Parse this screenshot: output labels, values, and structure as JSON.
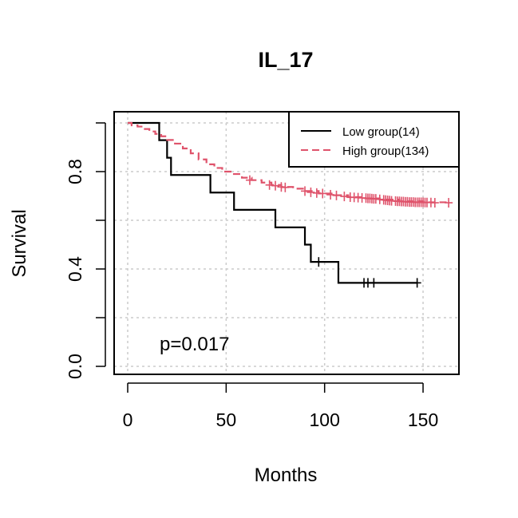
{
  "chart_data": {
    "type": "line",
    "title": "IL_17",
    "xlabel": "Months",
    "ylabel": "Survival",
    "xlim": [
      0,
      160
    ],
    "ylim": [
      0,
      1
    ],
    "xticks": [
      0,
      50,
      100,
      150
    ],
    "xtick_labels": [
      "0",
      "50",
      "100",
      "150"
    ],
    "yticks": [
      0,
      0.2,
      0.4,
      0.6,
      0.8,
      1.0
    ],
    "ytick_labels": [
      "0.0",
      "",
      "0.4",
      "",
      "0.8",
      ""
    ],
    "grid": true,
    "legend_position": "top-right",
    "annotation": "p=0.017",
    "series": [
      {
        "name": "Low group(14)",
        "color": "#000000",
        "dash": "solid",
        "steps": [
          [
            0,
            1.0
          ],
          [
            16,
            0.929
          ],
          [
            20,
            0.857
          ],
          [
            22,
            0.786
          ],
          [
            42,
            0.714
          ],
          [
            54,
            0.643
          ],
          [
            75,
            0.571
          ],
          [
            90,
            0.5
          ],
          [
            93,
            0.429
          ],
          [
            107,
            0.343
          ],
          [
            147,
            0.343
          ]
        ],
        "censored": [
          [
            97,
            0.429
          ],
          [
            120,
            0.343
          ],
          [
            122,
            0.343
          ],
          [
            125,
            0.343
          ],
          [
            147,
            0.343
          ]
        ]
      },
      {
        "name": "High group(134)",
        "color": "#df536b",
        "dash": "dashed",
        "steps": [
          [
            0,
            1.0
          ],
          [
            2,
            0.99
          ],
          [
            5,
            0.985
          ],
          [
            8,
            0.975
          ],
          [
            11,
            0.965
          ],
          [
            14,
            0.955
          ],
          [
            17,
            0.945
          ],
          [
            20,
            0.93
          ],
          [
            24,
            0.915
          ],
          [
            28,
            0.895
          ],
          [
            32,
            0.875
          ],
          [
            36,
            0.85
          ],
          [
            40,
            0.83
          ],
          [
            44,
            0.815
          ],
          [
            48,
            0.8
          ],
          [
            53,
            0.79
          ],
          [
            58,
            0.775
          ],
          [
            63,
            0.765
          ],
          [
            68,
            0.755
          ],
          [
            73,
            0.745
          ],
          [
            78,
            0.737
          ],
          [
            84,
            0.73
          ],
          [
            90,
            0.72
          ],
          [
            97,
            0.71
          ],
          [
            104,
            0.703
          ],
          [
            112,
            0.695
          ],
          [
            120,
            0.69
          ],
          [
            128,
            0.685
          ],
          [
            138,
            0.678
          ],
          [
            150,
            0.674
          ],
          [
            163,
            0.672
          ]
        ],
        "censored": [
          [
            62,
            0.765
          ],
          [
            72,
            0.745
          ],
          [
            75,
            0.742
          ],
          [
            78,
            0.737
          ],
          [
            80,
            0.735
          ],
          [
            90,
            0.72
          ],
          [
            93,
            0.715
          ],
          [
            96,
            0.712
          ],
          [
            99,
            0.71
          ],
          [
            103,
            0.705
          ],
          [
            106,
            0.702
          ],
          [
            110,
            0.698
          ],
          [
            113,
            0.695
          ],
          [
            115,
            0.694
          ],
          [
            117,
            0.693
          ],
          [
            119,
            0.692
          ],
          [
            121,
            0.691
          ],
          [
            122,
            0.69
          ],
          [
            123,
            0.69
          ],
          [
            124,
            0.689
          ],
          [
            125,
            0.688
          ],
          [
            126,
            0.688
          ],
          [
            128,
            0.686
          ],
          [
            130,
            0.684
          ],
          [
            131,
            0.683
          ],
          [
            132,
            0.682
          ],
          [
            133,
            0.681
          ],
          [
            134,
            0.68
          ],
          [
            136,
            0.679
          ],
          [
            137,
            0.678
          ],
          [
            138,
            0.678
          ],
          [
            139,
            0.677
          ],
          [
            140,
            0.677
          ],
          [
            141,
            0.676
          ],
          [
            142,
            0.676
          ],
          [
            143,
            0.675
          ],
          [
            144,
            0.675
          ],
          [
            145,
            0.675
          ],
          [
            146,
            0.674
          ],
          [
            147,
            0.674
          ],
          [
            148,
            0.674
          ],
          [
            149,
            0.674
          ],
          [
            150,
            0.674
          ],
          [
            151,
            0.673
          ],
          [
            152,
            0.673
          ],
          [
            154,
            0.673
          ],
          [
            156,
            0.672
          ],
          [
            163,
            0.672
          ]
        ]
      }
    ]
  }
}
